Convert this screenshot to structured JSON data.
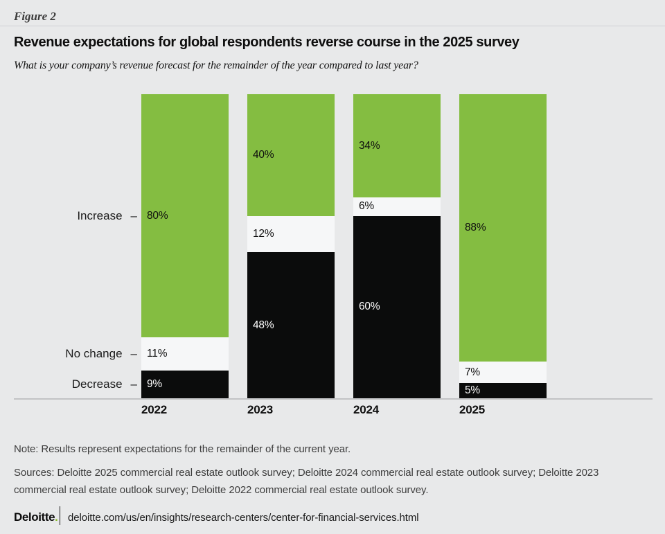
{
  "header": {
    "figure_label": "Figure 2",
    "title": "Revenue expectations for global respondents reverse course in the 2025 survey",
    "subtitle": "What is your company’s revenue forecast for the remainder of the year compared to last year?"
  },
  "chart_data": {
    "type": "bar",
    "stacked": true,
    "title": "Revenue expectations for global respondents reverse course in the 2025 survey",
    "question": "What is your company’s revenue forecast for the remainder of the year compared to last year?",
    "categories": [
      "2022",
      "2023",
      "2024",
      "2025"
    ],
    "series": [
      {
        "name": "Increase",
        "color": "#84bd41",
        "label_color": "#0e0e0e",
        "values": [
          80,
          40,
          34,
          88
        ]
      },
      {
        "name": "No change",
        "color": "#f6f7f8",
        "label_color": "#0e0e0e",
        "values": [
          11,
          12,
          6,
          7
        ]
      },
      {
        "name": "Decrease",
        "color": "#0b0c0c",
        "label_color": "#ffffff",
        "values": [
          9,
          48,
          60,
          5
        ]
      }
    ],
    "value_suffix": "%",
    "axis_dash": "–",
    "ylim": [
      0,
      100
    ],
    "grid": false,
    "legend_position": "left-axis-labels"
  },
  "footnotes": {
    "note": "Note: Results represent expectations for the remainder of the current year.",
    "sources": "Sources: Deloitte 2025 commercial real estate outlook survey; Deloitte 2024 commercial real estate outlook survey; Deloitte 2023 commercial real estate outlook survey; Deloitte 2022 commercial real estate outlook survey."
  },
  "footer": {
    "brand": "Deloitte",
    "brand_dot": ".",
    "url": "deloitte.com/us/en/insights/research-centers/center-for-financial-services.html"
  },
  "colors": {
    "background": "#e8e9ea",
    "accent_green": "#84bd41",
    "deloitte_dot_green": "#86bc25",
    "top_rule": "#d0d1d3",
    "baseline": "#c2c3c5"
  }
}
